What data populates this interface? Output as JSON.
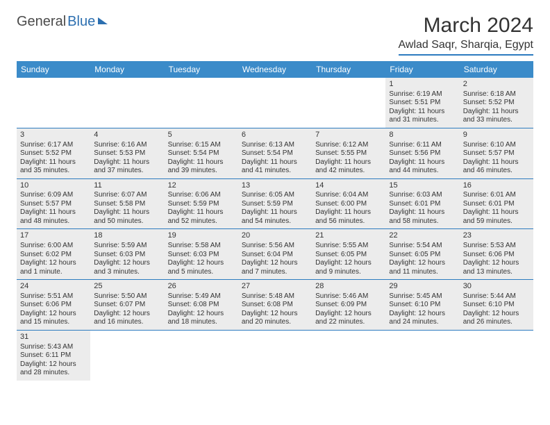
{
  "logo": {
    "part1": "General",
    "part2": "Blue"
  },
  "title": "March 2024",
  "location": "Awlad Saqr, Sharqia, Egypt",
  "colors": {
    "header_bg": "#3b8bc9",
    "header_text": "#ffffff",
    "rule": "#2c7bbf",
    "shaded_bg": "#ececec",
    "text": "#333333",
    "logo_blue": "#2c6fb0"
  },
  "day_headers": [
    "Sunday",
    "Monday",
    "Tuesday",
    "Wednesday",
    "Thursday",
    "Friday",
    "Saturday"
  ],
  "weeks": [
    [
      null,
      null,
      null,
      null,
      null,
      {
        "n": "1",
        "sr": "Sunrise: 6:19 AM",
        "ss": "Sunset: 5:51 PM",
        "d1": "Daylight: 11 hours",
        "d2": "and 31 minutes."
      },
      {
        "n": "2",
        "sr": "Sunrise: 6:18 AM",
        "ss": "Sunset: 5:52 PM",
        "d1": "Daylight: 11 hours",
        "d2": "and 33 minutes."
      }
    ],
    [
      {
        "n": "3",
        "sr": "Sunrise: 6:17 AM",
        "ss": "Sunset: 5:52 PM",
        "d1": "Daylight: 11 hours",
        "d2": "and 35 minutes."
      },
      {
        "n": "4",
        "sr": "Sunrise: 6:16 AM",
        "ss": "Sunset: 5:53 PM",
        "d1": "Daylight: 11 hours",
        "d2": "and 37 minutes."
      },
      {
        "n": "5",
        "sr": "Sunrise: 6:15 AM",
        "ss": "Sunset: 5:54 PM",
        "d1": "Daylight: 11 hours",
        "d2": "and 39 minutes."
      },
      {
        "n": "6",
        "sr": "Sunrise: 6:13 AM",
        "ss": "Sunset: 5:54 PM",
        "d1": "Daylight: 11 hours",
        "d2": "and 41 minutes."
      },
      {
        "n": "7",
        "sr": "Sunrise: 6:12 AM",
        "ss": "Sunset: 5:55 PM",
        "d1": "Daylight: 11 hours",
        "d2": "and 42 minutes."
      },
      {
        "n": "8",
        "sr": "Sunrise: 6:11 AM",
        "ss": "Sunset: 5:56 PM",
        "d1": "Daylight: 11 hours",
        "d2": "and 44 minutes."
      },
      {
        "n": "9",
        "sr": "Sunrise: 6:10 AM",
        "ss": "Sunset: 5:57 PM",
        "d1": "Daylight: 11 hours",
        "d2": "and 46 minutes."
      }
    ],
    [
      {
        "n": "10",
        "sr": "Sunrise: 6:09 AM",
        "ss": "Sunset: 5:57 PM",
        "d1": "Daylight: 11 hours",
        "d2": "and 48 minutes."
      },
      {
        "n": "11",
        "sr": "Sunrise: 6:07 AM",
        "ss": "Sunset: 5:58 PM",
        "d1": "Daylight: 11 hours",
        "d2": "and 50 minutes."
      },
      {
        "n": "12",
        "sr": "Sunrise: 6:06 AM",
        "ss": "Sunset: 5:59 PM",
        "d1": "Daylight: 11 hours",
        "d2": "and 52 minutes."
      },
      {
        "n": "13",
        "sr": "Sunrise: 6:05 AM",
        "ss": "Sunset: 5:59 PM",
        "d1": "Daylight: 11 hours",
        "d2": "and 54 minutes."
      },
      {
        "n": "14",
        "sr": "Sunrise: 6:04 AM",
        "ss": "Sunset: 6:00 PM",
        "d1": "Daylight: 11 hours",
        "d2": "and 56 minutes."
      },
      {
        "n": "15",
        "sr": "Sunrise: 6:03 AM",
        "ss": "Sunset: 6:01 PM",
        "d1": "Daylight: 11 hours",
        "d2": "and 58 minutes."
      },
      {
        "n": "16",
        "sr": "Sunrise: 6:01 AM",
        "ss": "Sunset: 6:01 PM",
        "d1": "Daylight: 11 hours",
        "d2": "and 59 minutes."
      }
    ],
    [
      {
        "n": "17",
        "sr": "Sunrise: 6:00 AM",
        "ss": "Sunset: 6:02 PM",
        "d1": "Daylight: 12 hours",
        "d2": "and 1 minute."
      },
      {
        "n": "18",
        "sr": "Sunrise: 5:59 AM",
        "ss": "Sunset: 6:03 PM",
        "d1": "Daylight: 12 hours",
        "d2": "and 3 minutes."
      },
      {
        "n": "19",
        "sr": "Sunrise: 5:58 AM",
        "ss": "Sunset: 6:03 PM",
        "d1": "Daylight: 12 hours",
        "d2": "and 5 minutes."
      },
      {
        "n": "20",
        "sr": "Sunrise: 5:56 AM",
        "ss": "Sunset: 6:04 PM",
        "d1": "Daylight: 12 hours",
        "d2": "and 7 minutes."
      },
      {
        "n": "21",
        "sr": "Sunrise: 5:55 AM",
        "ss": "Sunset: 6:05 PM",
        "d1": "Daylight: 12 hours",
        "d2": "and 9 minutes."
      },
      {
        "n": "22",
        "sr": "Sunrise: 5:54 AM",
        "ss": "Sunset: 6:05 PM",
        "d1": "Daylight: 12 hours",
        "d2": "and 11 minutes."
      },
      {
        "n": "23",
        "sr": "Sunrise: 5:53 AM",
        "ss": "Sunset: 6:06 PM",
        "d1": "Daylight: 12 hours",
        "d2": "and 13 minutes."
      }
    ],
    [
      {
        "n": "24",
        "sr": "Sunrise: 5:51 AM",
        "ss": "Sunset: 6:06 PM",
        "d1": "Daylight: 12 hours",
        "d2": "and 15 minutes."
      },
      {
        "n": "25",
        "sr": "Sunrise: 5:50 AM",
        "ss": "Sunset: 6:07 PM",
        "d1": "Daylight: 12 hours",
        "d2": "and 16 minutes."
      },
      {
        "n": "26",
        "sr": "Sunrise: 5:49 AM",
        "ss": "Sunset: 6:08 PM",
        "d1": "Daylight: 12 hours",
        "d2": "and 18 minutes."
      },
      {
        "n": "27",
        "sr": "Sunrise: 5:48 AM",
        "ss": "Sunset: 6:08 PM",
        "d1": "Daylight: 12 hours",
        "d2": "and 20 minutes."
      },
      {
        "n": "28",
        "sr": "Sunrise: 5:46 AM",
        "ss": "Sunset: 6:09 PM",
        "d1": "Daylight: 12 hours",
        "d2": "and 22 minutes."
      },
      {
        "n": "29",
        "sr": "Sunrise: 5:45 AM",
        "ss": "Sunset: 6:10 PM",
        "d1": "Daylight: 12 hours",
        "d2": "and 24 minutes."
      },
      {
        "n": "30",
        "sr": "Sunrise: 5:44 AM",
        "ss": "Sunset: 6:10 PM",
        "d1": "Daylight: 12 hours",
        "d2": "and 26 minutes."
      }
    ],
    [
      {
        "n": "31",
        "sr": "Sunrise: 5:43 AM",
        "ss": "Sunset: 6:11 PM",
        "d1": "Daylight: 12 hours",
        "d2": "and 28 minutes."
      },
      null,
      null,
      null,
      null,
      null,
      null
    ]
  ]
}
